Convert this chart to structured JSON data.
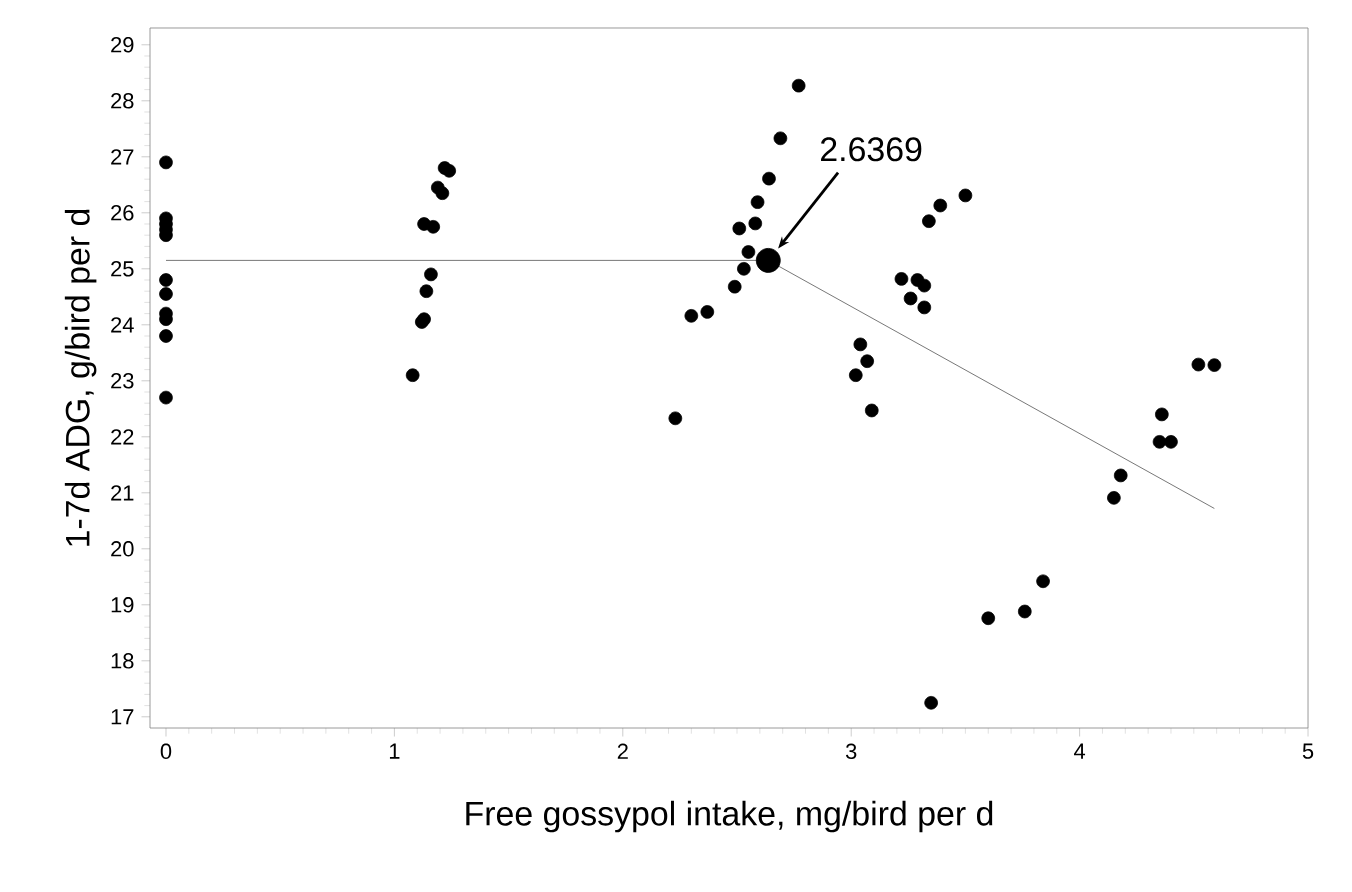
{
  "chart_data": {
    "type": "scatter",
    "xlabel": "Free gossypol intake, mg/bird per d",
    "ylabel": "1-7d ADG, g/bird per d",
    "xlim": [
      -0.07,
      5
    ],
    "ylim": [
      16.8,
      29.3
    ],
    "xticks": [
      0,
      1,
      2,
      3,
      4,
      5
    ],
    "yticks": [
      17,
      18,
      19,
      20,
      21,
      22,
      23,
      24,
      25,
      26,
      27,
      28,
      29
    ],
    "grid": false,
    "series": [
      {
        "marker": "circle",
        "color": "#000000",
        "x": [
          0,
          0,
          0,
          0,
          0,
          0,
          0,
          0,
          0,
          0,
          0,
          1.08,
          1.12,
          1.13,
          1.14,
          1.16,
          1.13,
          1.17,
          1.19,
          1.21,
          1.22,
          1.24,
          2.23,
          2.3,
          2.37,
          2.49,
          2.53,
          2.55,
          2.51,
          2.58,
          2.59,
          2.64,
          2.69,
          2.77,
          3.22,
          3.29,
          3.32,
          3.26,
          3.32,
          3.34,
          3.39,
          3.5,
          3.04,
          3.07,
          3.02,
          3.09,
          3.35,
          3.6,
          3.76,
          3.84,
          4.15,
          4.18,
          4.36,
          4.35,
          4.4,
          4.52,
          4.59
        ],
        "values": [
          26.9,
          25.9,
          25.8,
          25.7,
          25.6,
          24.8,
          24.55,
          24.2,
          24.1,
          23.8,
          22.7,
          23.1,
          24.05,
          24.1,
          24.6,
          24.9,
          25.8,
          25.75,
          26.45,
          26.35,
          26.8,
          26.75,
          22.33,
          24.16,
          24.23,
          24.68,
          25.0,
          25.3,
          25.72,
          25.81,
          26.19,
          26.61,
          27.33,
          28.27,
          24.82,
          24.8,
          24.7,
          24.47,
          24.31,
          25.85,
          26.13,
          26.31,
          23.65,
          23.35,
          23.1,
          22.47,
          17.25,
          18.76,
          18.88,
          19.42,
          20.91,
          21.31,
          22.4,
          21.91,
          21.91,
          23.29,
          23.28
        ]
      },
      {
        "type": "line",
        "color": "#555555",
        "marker": "none",
        "x": [
          0,
          2.6369,
          4.59
        ],
        "values": [
          25.15,
          25.15,
          20.72
        ]
      },
      {
        "marker": "circle",
        "color": "#000000",
        "x": [
          2.6369
        ],
        "values": [
          25.15
        ]
      }
    ],
    "annotations": [
      "2.6369"
    ]
  }
}
